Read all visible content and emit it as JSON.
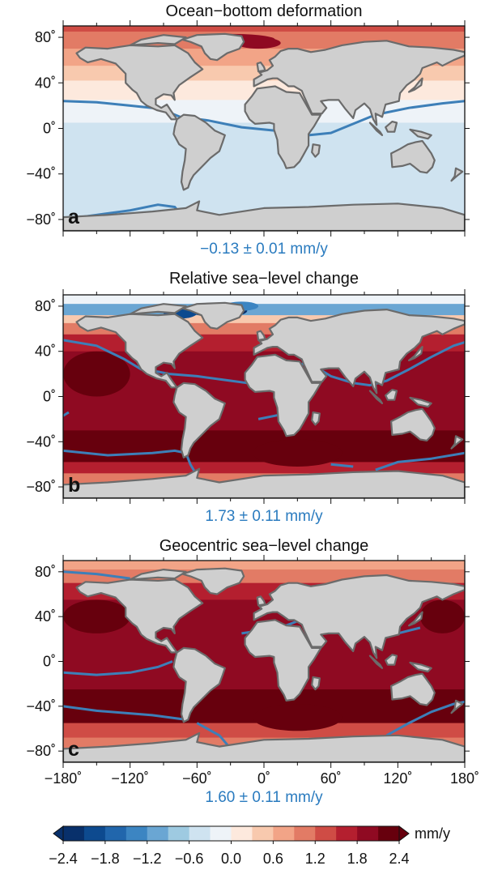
{
  "colors": {
    "scale": [
      "#08306b",
      "#0d4a8f",
      "#2166ac",
      "#3c85c2",
      "#6aa6d3",
      "#9ecae1",
      "#cfe3f0",
      "#eef3f8",
      "#fde9dd",
      "#f8c9ae",
      "#f2a487",
      "#e27b65",
      "#cf4c45",
      "#b41f2f",
      "#8f0a22",
      "#67000d"
    ],
    "land": "#cfcfcf",
    "coast": "#6b6b6b",
    "contour": "#3d7fb8",
    "mean_text": "#2a7bbf"
  },
  "chart_data": [
    {
      "type": "heatmap",
      "title": "Ocean−bottom deformation",
      "panel_label": "a",
      "global_mean": "−0.13 ± 0.01 mm/y",
      "x_ticks": [],
      "y_ticks": [
        "80˚",
        "40˚",
        "0˚",
        "−40˚",
        "−80˚"
      ],
      "xlim": [
        -180,
        180
      ],
      "ylim": [
        -90,
        90
      ],
      "bands": [
        {
          "lat_max": 90,
          "lat_min": 85,
          "value": 1.4
        },
        {
          "lat_max": 85,
          "lat_min": 70,
          "value": 1.0
        },
        {
          "lat_max": 70,
          "lat_min": 55,
          "value": 0.6
        },
        {
          "lat_max": 55,
          "lat_min": 42,
          "value": 0.3
        },
        {
          "lat_max": 42,
          "lat_min": 25,
          "value": 0.05
        },
        {
          "lat_max": 25,
          "lat_min": 5,
          "value": -0.2
        },
        {
          "lat_max": 5,
          "lat_min": -75,
          "value": -0.35
        },
        {
          "lat_max": -75,
          "lat_min": -90,
          "value": -0.35
        }
      ]
    },
    {
      "type": "heatmap",
      "title": "Relative sea−level change",
      "panel_label": "b",
      "global_mean": "1.73 ± 0.11 mm/y",
      "x_ticks": [],
      "y_ticks": [
        "80˚",
        "40˚",
        "0˚",
        "−40˚",
        "−80˚"
      ],
      "xlim": [
        -180,
        180
      ],
      "ylim": [
        -90,
        90
      ],
      "bands": [
        {
          "lat_max": 90,
          "lat_min": 82,
          "value": -0.3
        },
        {
          "lat_max": 82,
          "lat_min": 72,
          "value": -1.2
        },
        {
          "lat_max": 72,
          "lat_min": 65,
          "value": 0.4
        },
        {
          "lat_max": 65,
          "lat_min": 55,
          "value": 1.0
        },
        {
          "lat_max": 55,
          "lat_min": 40,
          "value": 1.7
        },
        {
          "lat_max": 40,
          "lat_min": -30,
          "value": 2.0
        },
        {
          "lat_max": -30,
          "lat_min": -58,
          "value": 2.3
        },
        {
          "lat_max": -58,
          "lat_min": -68,
          "value": 1.5
        },
        {
          "lat_max": -68,
          "lat_min": -78,
          "value": 0.9
        },
        {
          "lat_max": -78,
          "lat_min": -90,
          "value": 0.9
        }
      ]
    },
    {
      "type": "heatmap",
      "title": "Geocentric sea−level change",
      "panel_label": "c",
      "global_mean": "1.60 ± 0.11 mm/y",
      "x_ticks": [
        "−180˚",
        "−120˚",
        "−60˚",
        "0˚",
        "60˚",
        "120˚",
        "180˚"
      ],
      "y_ticks": [
        "80˚",
        "40˚",
        "0˚",
        "−40˚",
        "−80˚"
      ],
      "xlim": [
        -180,
        180
      ],
      "ylim": [
        -90,
        90
      ],
      "bands": [
        {
          "lat_max": 90,
          "lat_min": 82,
          "value": 0.6
        },
        {
          "lat_max": 82,
          "lat_min": 70,
          "value": 1.1
        },
        {
          "lat_max": 70,
          "lat_min": 55,
          "value": 1.5
        },
        {
          "lat_max": 55,
          "lat_min": 35,
          "value": 1.9
        },
        {
          "lat_max": 35,
          "lat_min": -25,
          "value": 1.8
        },
        {
          "lat_max": -25,
          "lat_min": -55,
          "value": 2.1
        },
        {
          "lat_max": -55,
          "lat_min": -68,
          "value": 1.4
        },
        {
          "lat_max": -68,
          "lat_min": -90,
          "value": 0.9
        }
      ]
    }
  ],
  "colorbar": {
    "unit": "mm/y",
    "tick_labels": [
      "−2.4",
      "−1.8",
      "−1.2",
      "−0.6",
      "0.0",
      "0.6",
      "1.2",
      "1.8",
      "2.4"
    ],
    "range": [
      -2.4,
      2.4
    ],
    "step": 0.3
  }
}
